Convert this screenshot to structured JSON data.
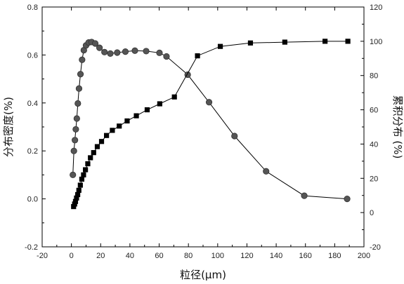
{
  "chart_data": {
    "type": "line",
    "xlabel": "粒径(μm)",
    "ylabel_left": "分布密度(%)",
    "ylabel_right": "累积分布 (%)",
    "xlim": [
      -20,
      200
    ],
    "ylim_left": [
      -0.2,
      0.8
    ],
    "ylim_right": [
      -20,
      120
    ],
    "xticks": [
      -20,
      0,
      20,
      40,
      60,
      80,
      100,
      120,
      140,
      160,
      180,
      200
    ],
    "yticks_left": [
      -0.2,
      0.0,
      0.2,
      0.4,
      0.6,
      0.8
    ],
    "yticks_right": [
      -20,
      0,
      20,
      40,
      60,
      80,
      100,
      120
    ],
    "xtick_labels": [
      "-20",
      "0",
      "20",
      "40",
      "60",
      "80",
      "100",
      "120",
      "140",
      "160",
      "180",
      "200"
    ],
    "yticks_left_labels": [
      "-0.2",
      "0.0",
      "0.2",
      "0.4",
      "0.6",
      "0.8"
    ],
    "yticks_right_labels": [
      "-20",
      "0",
      "20",
      "40",
      "60",
      "80",
      "100",
      "120"
    ],
    "grid": false,
    "series": [
      {
        "axis": "left",
        "marker": "circle",
        "x": [
          1.0,
          1.7,
          2.4,
          3.0,
          3.7,
          4.4,
          5.2,
          6.2,
          7.3,
          8.5,
          10.0,
          11.8,
          13.8,
          16.3,
          19.2,
          22.6,
          26.6,
          31.3,
          36.9,
          43.4,
          51.1,
          60.2,
          65.0,
          79.5,
          94.1,
          111.5,
          133.1,
          159.2,
          188.5
        ],
        "y": [
          0.1,
          0.2,
          0.245,
          0.29,
          0.335,
          0.398,
          0.46,
          0.52,
          0.58,
          0.62,
          0.64,
          0.652,
          0.654,
          0.648,
          0.63,
          0.612,
          0.606,
          0.61,
          0.614,
          0.618,
          0.616,
          0.609,
          0.594,
          0.518,
          0.403,
          0.262,
          0.115,
          0.013,
          0.0
        ]
      },
      {
        "axis": "right",
        "marker": "square",
        "x": [
          1.5,
          2.2,
          2.8,
          3.5,
          4.3,
          5.1,
          6.1,
          7.1,
          8.3,
          9.6,
          11.2,
          13.0,
          15.2,
          17.7,
          20.6,
          24.0,
          28.0,
          32.7,
          38.1,
          44.4,
          51.8,
          60.4,
          70.4,
          86.2,
          101.8,
          122.4,
          145.9,
          173.4,
          189.0
        ],
        "y": [
          3.5,
          5.0,
          6.5,
          8.5,
          10.5,
          13.0,
          16.0,
          19.5,
          22.0,
          25.0,
          28.5,
          32.0,
          35.0,
          38.5,
          41.5,
          45.0,
          48.0,
          50.5,
          53.5,
          56.5,
          60.0,
          63.5,
          67.5,
          91.5,
          97.0,
          99.0,
          99.5,
          100.0,
          100.0
        ]
      }
    ]
  }
}
